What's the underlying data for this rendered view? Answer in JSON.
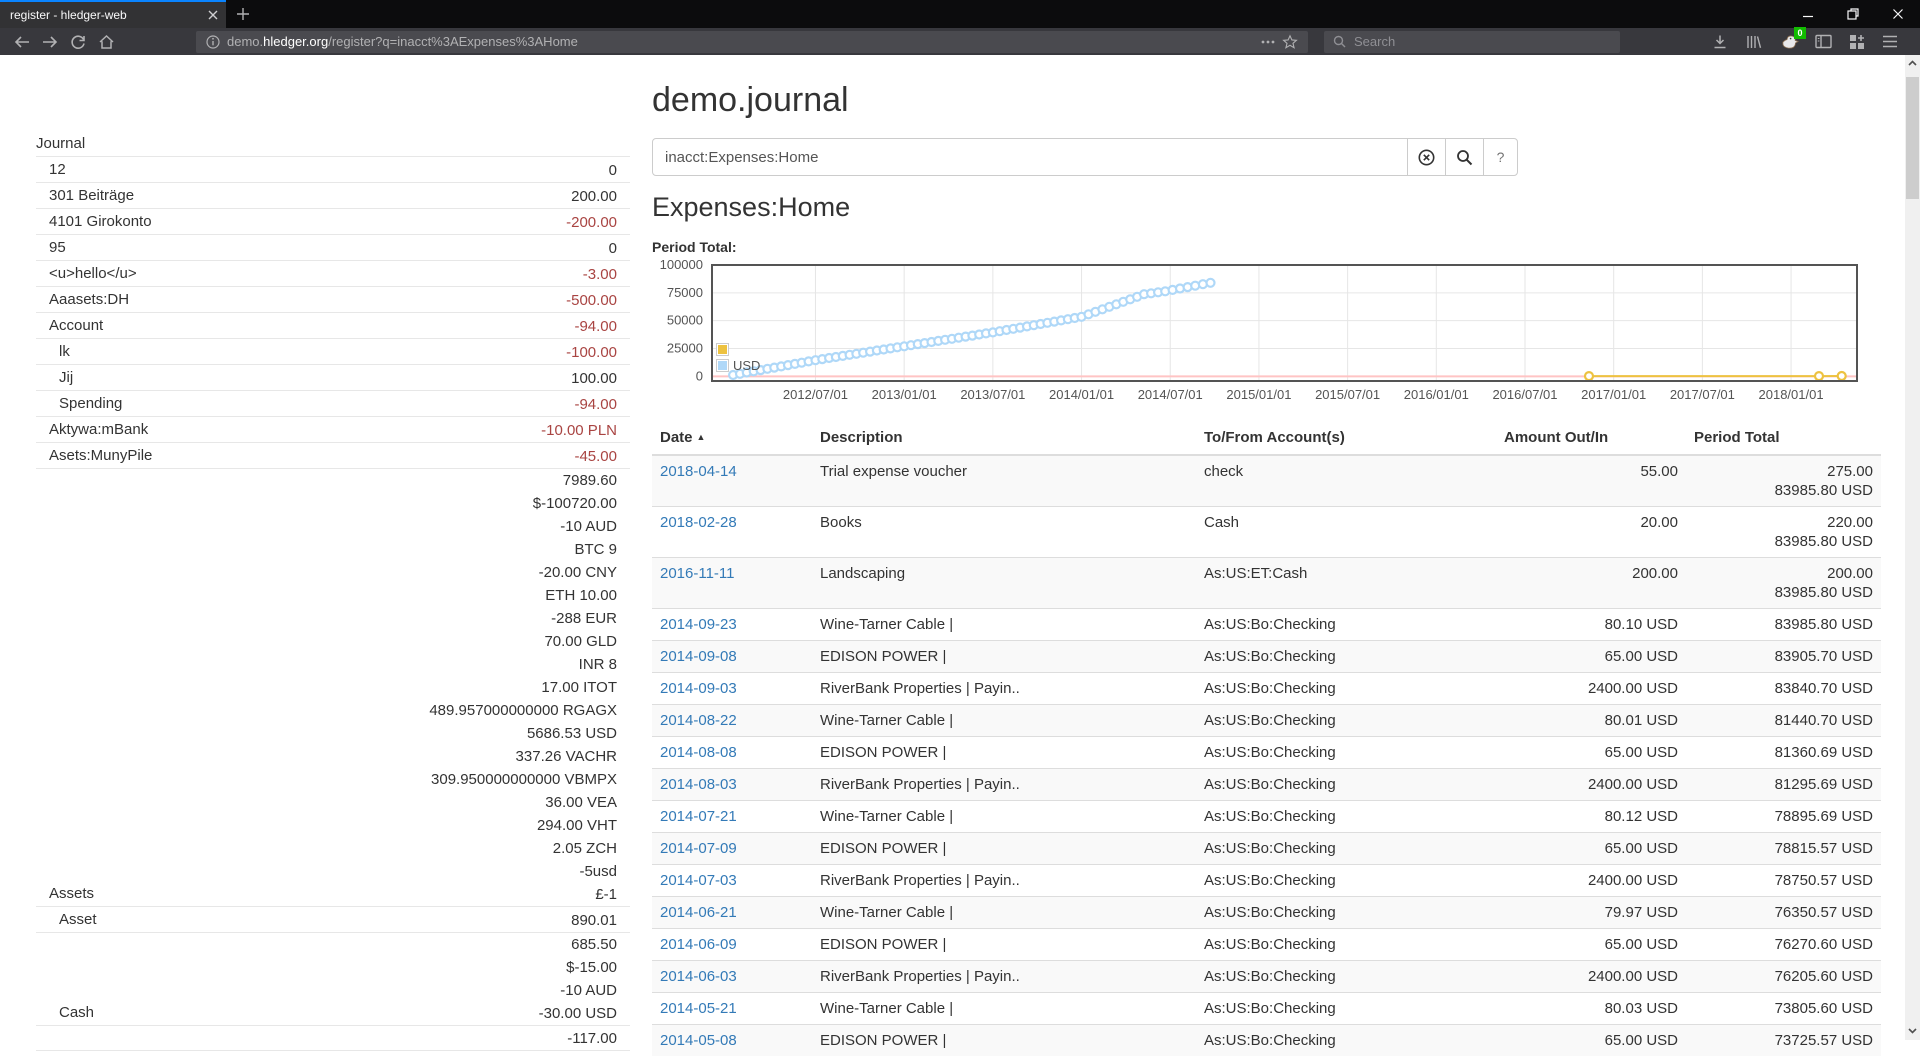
{
  "browser": {
    "tab_title": "register - hledger-web",
    "url_subdomain": "demo.",
    "url_host": "hledger.org",
    "url_path": "/register?q=inacct%3AExpenses%3AHome",
    "search_placeholder": "Search",
    "extension_badge": "0"
  },
  "colors": {
    "accent_blue": "#0a84ff",
    "link": "#337ab7",
    "negative": "#a94442",
    "flot_yellow": "#edc240",
    "flot_blue": "#afd8f8",
    "badge_green": "#12bc00"
  },
  "sidebar": {
    "rows": [
      {
        "name": "Journal",
        "depth": 0,
        "amounts": []
      },
      {
        "name": "12",
        "depth": 1,
        "amounts": [
          {
            "t": "0",
            "neg": false
          }
        ]
      },
      {
        "name": "301 Beiträge",
        "depth": 1,
        "amounts": [
          {
            "t": "200.00",
            "neg": false
          }
        ]
      },
      {
        "name": "4101 Girokonto",
        "depth": 1,
        "amounts": [
          {
            "t": "-200.00",
            "neg": true
          }
        ]
      },
      {
        "name": "95",
        "depth": 1,
        "amounts": [
          {
            "t": "0",
            "neg": false
          }
        ]
      },
      {
        "name": "<u>hello</u>",
        "depth": 1,
        "amounts": [
          {
            "t": "-3.00",
            "neg": true
          }
        ]
      },
      {
        "name": "Aaasets:DH",
        "depth": 1,
        "amounts": [
          {
            "t": "-500.00",
            "neg": true
          }
        ]
      },
      {
        "name": "Account",
        "depth": 1,
        "amounts": [
          {
            "t": "-94.00",
            "neg": true
          }
        ]
      },
      {
        "name": "lk",
        "depth": 2,
        "amounts": [
          {
            "t": "-100.00",
            "neg": true
          }
        ]
      },
      {
        "name": "Jij",
        "depth": 2,
        "amounts": [
          {
            "t": "100.00",
            "neg": false
          }
        ]
      },
      {
        "name": "Spending",
        "depth": 2,
        "amounts": [
          {
            "t": "-94.00",
            "neg": true
          }
        ]
      },
      {
        "name": "Aktywa:mBank",
        "depth": 1,
        "amounts": [
          {
            "t": "-10.00 PLN",
            "neg": true
          }
        ]
      },
      {
        "name": "Asets:MunyPile",
        "depth": 1,
        "amounts": [
          {
            "t": "-45.00",
            "neg": true
          }
        ]
      },
      {
        "name": "Assets",
        "depth": 1,
        "amounts": [
          {
            "t": "7989.60",
            "neg": false
          },
          {
            "t": "$-100720.00",
            "neg": false
          },
          {
            "t": "-10 AUD",
            "neg": false
          },
          {
            "t": "BTC 9",
            "neg": false
          },
          {
            "t": "-20.00 CNY",
            "neg": false
          },
          {
            "t": "ETH 10.00",
            "neg": false
          },
          {
            "t": "-288 EUR",
            "neg": false
          },
          {
            "t": "70.00 GLD",
            "neg": false
          },
          {
            "t": "INR 8",
            "neg": false
          },
          {
            "t": "17.00 ITOT",
            "neg": false
          },
          {
            "t": "489.957000000000 RGAGX",
            "neg": false
          },
          {
            "t": "5686.53 USD",
            "neg": false
          },
          {
            "t": "337.26 VACHR",
            "neg": false
          },
          {
            "t": "309.950000000000 VBMPX",
            "neg": false
          },
          {
            "t": "36.00 VEA",
            "neg": false
          },
          {
            "t": "294.00 VHT",
            "neg": false
          },
          {
            "t": "2.05 ZCH",
            "neg": false
          },
          {
            "t": "-5usd",
            "neg": false
          },
          {
            "t": "£-1",
            "neg": false
          }
        ]
      },
      {
        "name": "Asset",
        "depth": 2,
        "amounts": [
          {
            "t": "890.01",
            "neg": false
          }
        ]
      },
      {
        "name": "Cash",
        "depth": 2,
        "amounts": [
          {
            "t": "685.50",
            "neg": false
          },
          {
            "t": "$-15.00",
            "neg": false
          },
          {
            "t": "-10 AUD",
            "neg": false
          },
          {
            "t": "-30.00 USD",
            "neg": false
          }
        ]
      },
      {
        "name": "",
        "depth": 1,
        "amounts": [
          {
            "t": "-117.00",
            "neg": false
          }
        ]
      }
    ]
  },
  "main": {
    "title": "demo.journal",
    "query": "inacct:Expenses:Home",
    "heading": "Expenses:Home",
    "help_label": "?"
  },
  "chart_data": {
    "type": "line",
    "title": "Period Total:",
    "ylim": [
      0,
      100000
    ],
    "yticks": [
      0,
      25000,
      50000,
      75000,
      100000
    ],
    "xticks": [
      "2012/07/01",
      "2013/01/01",
      "2013/07/01",
      "2014/01/01",
      "2014/07/01",
      "2015/01/01",
      "2015/07/01",
      "2016/01/01",
      "2016/07/01",
      "2017/01/01",
      "2017/07/01",
      "2018/01/01"
    ],
    "x_domain": [
      "2011-12-01",
      "2018-05-15"
    ],
    "grid": true,
    "legend_position": "inside-left",
    "legend": [
      {
        "label": "",
        "color": "#edc240"
      },
      {
        "label": "USD",
        "color": "#afd8f8"
      }
    ],
    "zero_line_color": "#ffc4c4",
    "series": [
      {
        "name": "USD",
        "color": "#afd8f8",
        "marker": "circle",
        "anchors": [
          [
            "2012-01-14",
            1200
          ],
          [
            "2012-07-01",
            14500
          ],
          [
            "2013-01-01",
            27000
          ],
          [
            "2013-07-01",
            39500
          ],
          [
            "2014-01-01",
            53500
          ],
          [
            "2014-05-08",
            73725.57
          ],
          [
            "2014-06-21",
            76350.57
          ],
          [
            "2014-07-21",
            78895.69
          ],
          [
            "2014-08-22",
            81440.7
          ],
          [
            "2014-09-23",
            83985.8
          ]
        ],
        "interp_step_days": 14
      },
      {
        "name": "",
        "color": "#edc240",
        "marker": "circle",
        "points": [
          [
            "2016-11-11",
            200
          ],
          [
            "2018-02-28",
            220
          ],
          [
            "2018-04-14",
            275
          ]
        ]
      }
    ]
  },
  "table": {
    "columns": [
      {
        "label": "Date",
        "sort": "asc",
        "align": "left"
      },
      {
        "label": "Description",
        "align": "left"
      },
      {
        "label": "To/From Account(s)",
        "align": "left"
      },
      {
        "label": "Amount Out/In",
        "align": "right"
      },
      {
        "label": "Period Total",
        "align": "right"
      }
    ],
    "sort_glyph": "▲",
    "rows": [
      {
        "date": "2018-04-14",
        "desc": "Trial expense voucher",
        "acct": "check",
        "amount": "55.00",
        "totals": [
          "275.00",
          "83985.80 USD"
        ]
      },
      {
        "date": "2018-02-28",
        "desc": "Books",
        "acct": "Cash",
        "amount": "20.00",
        "totals": [
          "220.00",
          "83985.80 USD"
        ]
      },
      {
        "date": "2016-11-11",
        "desc": "Landscaping",
        "acct": "As:US:ET:Cash",
        "amount": "200.00",
        "totals": [
          "200.00",
          "83985.80 USD"
        ]
      },
      {
        "date": "2014-09-23",
        "desc": "Wine-Tarner Cable |",
        "acct": "As:US:Bo:Checking",
        "amount": "80.10 USD",
        "totals": [
          "83985.80 USD"
        ]
      },
      {
        "date": "2014-09-08",
        "desc": "EDISON POWER |",
        "acct": "As:US:Bo:Checking",
        "amount": "65.00 USD",
        "totals": [
          "83905.70 USD"
        ]
      },
      {
        "date": "2014-09-03",
        "desc": "RiverBank Properties | Payin..",
        "acct": "As:US:Bo:Checking",
        "amount": "2400.00 USD",
        "totals": [
          "83840.70 USD"
        ]
      },
      {
        "date": "2014-08-22",
        "desc": "Wine-Tarner Cable |",
        "acct": "As:US:Bo:Checking",
        "amount": "80.01 USD",
        "totals": [
          "81440.70 USD"
        ]
      },
      {
        "date": "2014-08-08",
        "desc": "EDISON POWER |",
        "acct": "As:US:Bo:Checking",
        "amount": "65.00 USD",
        "totals": [
          "81360.69 USD"
        ]
      },
      {
        "date": "2014-08-03",
        "desc": "RiverBank Properties | Payin..",
        "acct": "As:US:Bo:Checking",
        "amount": "2400.00 USD",
        "totals": [
          "81295.69 USD"
        ]
      },
      {
        "date": "2014-07-21",
        "desc": "Wine-Tarner Cable |",
        "acct": "As:US:Bo:Checking",
        "amount": "80.12 USD",
        "totals": [
          "78895.69 USD"
        ]
      },
      {
        "date": "2014-07-09",
        "desc": "EDISON POWER |",
        "acct": "As:US:Bo:Checking",
        "amount": "65.00 USD",
        "totals": [
          "78815.57 USD"
        ]
      },
      {
        "date": "2014-07-03",
        "desc": "RiverBank Properties | Payin..",
        "acct": "As:US:Bo:Checking",
        "amount": "2400.00 USD",
        "totals": [
          "78750.57 USD"
        ]
      },
      {
        "date": "2014-06-21",
        "desc": "Wine-Tarner Cable |",
        "acct": "As:US:Bo:Checking",
        "amount": "79.97 USD",
        "totals": [
          "76350.57 USD"
        ]
      },
      {
        "date": "2014-06-09",
        "desc": "EDISON POWER |",
        "acct": "As:US:Bo:Checking",
        "amount": "65.00 USD",
        "totals": [
          "76270.60 USD"
        ]
      },
      {
        "date": "2014-06-03",
        "desc": "RiverBank Properties | Payin..",
        "acct": "As:US:Bo:Checking",
        "amount": "2400.00 USD",
        "totals": [
          "76205.60 USD"
        ]
      },
      {
        "date": "2014-05-21",
        "desc": "Wine-Tarner Cable |",
        "acct": "As:US:Bo:Checking",
        "amount": "80.03 USD",
        "totals": [
          "73805.60 USD"
        ]
      },
      {
        "date": "2014-05-08",
        "desc": "EDISON POWER |",
        "acct": "As:US:Bo:Checking",
        "amount": "65.00 USD",
        "totals": [
          "73725.57 USD"
        ]
      }
    ]
  }
}
